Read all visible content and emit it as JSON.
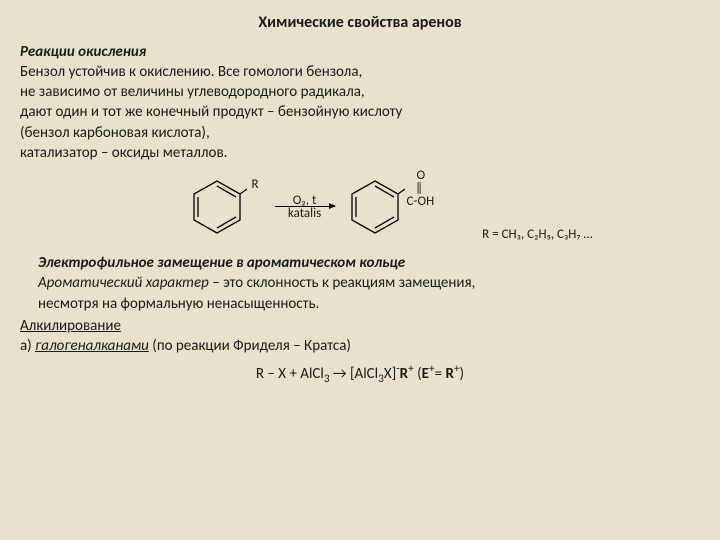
{
  "title": "Химические свойства аренов",
  "section1_heading": "Реакции окисления",
  "p1_l1": "Бензол устойчив к окислению. Все гомологи бензола,",
  "p1_l2": " не зависимо от величины углеводородного радикала,",
  "p1_l3": "дают один и тот же конечный продукт – бензойную кислоту",
  "p1_l4": "(бензол карбоновая кислота),",
  "p1_l5": "катализатор – оксиды металлов.",
  "reaction": {
    "r_label": "R",
    "arrow_top": "O₂, t",
    "arrow_bottom": "katalis",
    "cooh_o": "O",
    "cooh_dbl": "‖",
    "cooh_coh": "C-OH",
    "r_values": "R = CH₃, C₂H₅, C₃H₇ …",
    "ring_stroke": "#000000",
    "ring_fill": "none"
  },
  "section2_heading": "Электрофильное замещение в ароматическом кольце",
  "p2_l1_em": "Ароматический характер",
  "p2_l1_rest": " – это склонность к реакциям замещения,",
  "p2_l2": "несмотря на формальную ненасыщенность.",
  "alk_heading": "Алкилирование",
  "alk_a_em": "галогеналканами",
  "alk_a_prefix": "а) ",
  "alk_a_rest": " (по реакции Фриделя – Кратса)",
  "equation_html": "R – X + AlCl<sub>3</sub> → [AlCl<sub>3</sub>X]<sup>-</sup><b>R</b><sup>+</sup> (<b>E</b><sup>+</sup>= <b>R</b><sup>+</sup>)"
}
